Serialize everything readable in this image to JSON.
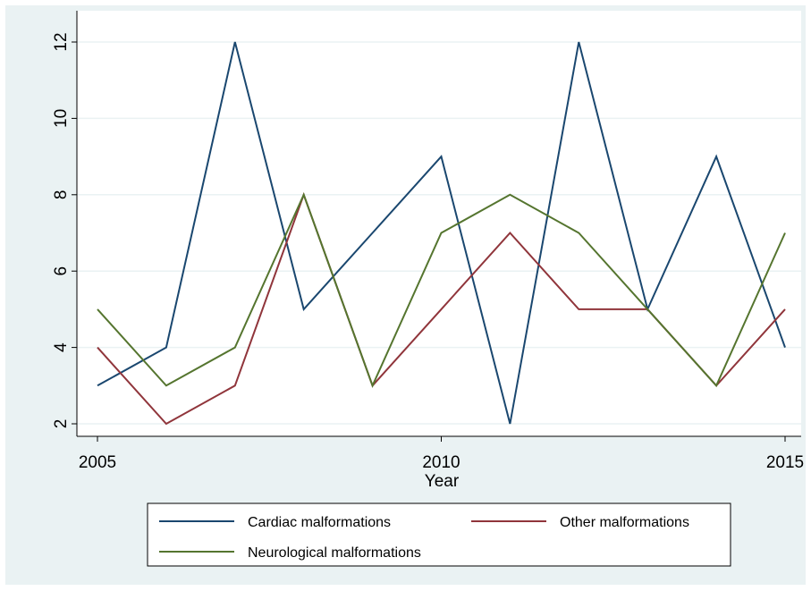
{
  "chart_data": {
    "type": "line",
    "x": [
      2005,
      2006,
      2007,
      2008,
      2009,
      2010,
      2011,
      2012,
      2013,
      2014,
      2015
    ],
    "series": [
      {
        "name": "Cardiac malformations",
        "color": "#1a476f",
        "values": [
          3,
          4,
          12,
          5,
          7,
          9,
          2,
          12,
          5,
          9,
          4
        ]
      },
      {
        "name": "Other malformations",
        "color": "#90353b",
        "values": [
          4,
          2,
          3,
          8,
          3,
          5,
          7,
          5,
          5,
          3,
          5
        ]
      },
      {
        "name": "Neurological malformations",
        "color": "#55752f",
        "values": [
          5,
          3,
          4,
          8,
          3,
          7,
          8,
          7,
          5,
          3,
          7
        ]
      }
    ],
    "xlabel": "Year",
    "ylabel": "",
    "xticks": [
      2005,
      2010,
      2015
    ],
    "yticks": [
      2,
      4,
      6,
      8,
      10,
      12
    ],
    "xlim": [
      2005,
      2015
    ],
    "ylim": [
      2,
      12
    ],
    "grid": true,
    "legend_position": "bottom"
  }
}
